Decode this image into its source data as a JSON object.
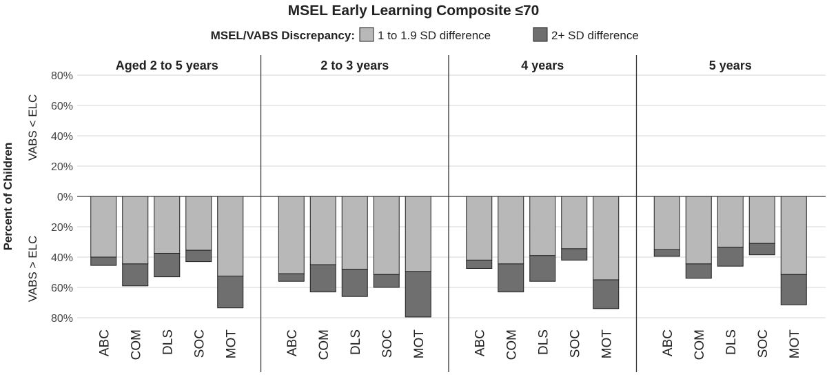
{
  "chart_data": {
    "type": "bar",
    "subtype": "stacked-diverging",
    "title": "MSEL Early Learning Composite ≤70",
    "legend": {
      "title": "MSEL/VABS Discrepancy:",
      "placement": "top",
      "entries": [
        {
          "label": "1 to 1.9 SD difference",
          "color": "#b8b8b8"
        },
        {
          "label": "2+ SD difference",
          "color": "#6f6f6f"
        }
      ]
    },
    "ylabel": "Percent of Children",
    "ylabel_upper": "VABS < ELC",
    "ylabel_lower": "VABS > ELC",
    "yticks": [
      "80%",
      "60%",
      "40%",
      "20%",
      "0%",
      "20%",
      "40%",
      "60%",
      "80%"
    ],
    "ylim": [
      -80,
      80
    ],
    "grid": true,
    "categories": [
      "ABC",
      "COM",
      "DLS",
      "SOC",
      "MOT"
    ],
    "panels": [
      {
        "title": "Aged 2 to 5 years",
        "series": [
          {
            "name": "1 to 1.9 SD difference",
            "values": [
              -40,
              -44.5,
              -37.5,
              -35.5,
              -52.5
            ]
          },
          {
            "name": "2+ SD difference",
            "values": [
              -5.5,
              -14.5,
              -15.5,
              -7.5,
              -21
            ]
          }
        ]
      },
      {
        "title": "2 to 3 years",
        "series": [
          {
            "name": "1 to 1.9 SD difference",
            "values": [
              -51,
              -45,
              -48,
              -51.5,
              -49.5
            ]
          },
          {
            "name": "2+ SD difference",
            "values": [
              -5,
              -18,
              -18,
              -8.5,
              -30
            ]
          }
        ]
      },
      {
        "title": "4 years",
        "series": [
          {
            "name": "1 to 1.9 SD difference",
            "values": [
              -42,
              -44.5,
              -39,
              -34.5,
              -55
            ]
          },
          {
            "name": "2+ SD difference",
            "values": [
              -5.5,
              -18.5,
              -17,
              -7.5,
              -19
            ]
          }
        ]
      },
      {
        "title": "5 years",
        "series": [
          {
            "name": "1 to 1.9 SD difference",
            "values": [
              -35,
              -44.5,
              -33.5,
              -31,
              -51.5
            ]
          },
          {
            "name": "2+ SD difference",
            "values": [
              -4.5,
              -9.5,
              -12.5,
              -7.5,
              -20
            ]
          }
        ]
      }
    ]
  }
}
